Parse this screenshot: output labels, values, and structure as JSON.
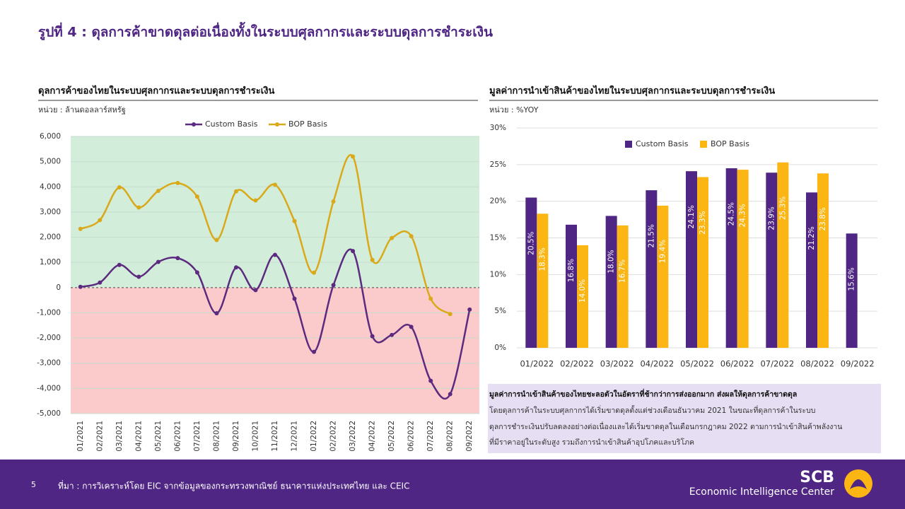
{
  "title": "รูปที่ 4 : ดุลการค้าขาดดุลต่อเนื่องทั้งในระบบศุลกากรและระบบดุลการชำระเงิน",
  "chart_data": [
    {
      "type": "line",
      "title": "ดุลการค้าของไทยในระบบศุลกากรและระบบดุลการชำระเงิน",
      "subtitle": "หน่วย : ล้านดอลลาร์สหรัฐ",
      "categories": [
        "01/2021",
        "02/2021",
        "03/2021",
        "04/2021",
        "05/2021",
        "06/2021",
        "07/2021",
        "08/2021",
        "09/2021",
        "10/2021",
        "11/2021",
        "12/2021",
        "01/2022",
        "02/2022",
        "03/2022",
        "04/2022",
        "05/2022",
        "06/2022",
        "07/2022",
        "08/2022",
        "09/2022"
      ],
      "series": [
        {
          "name": "Custom Basis",
          "color": "#5c2a7e",
          "values": [
            30,
            200,
            900,
            430,
            1020,
            1170,
            600,
            -1020,
            800,
            -100,
            1300,
            -440,
            -2550,
            100,
            1450,
            -1930,
            -1880,
            -1560,
            -3700,
            -4230,
            -870
          ]
        },
        {
          "name": "BOP Basis",
          "color": "#d9a91a",
          "values": [
            2330,
            2680,
            3980,
            3180,
            3840,
            4150,
            3610,
            1890,
            3820,
            3460,
            4080,
            2640,
            590,
            3420,
            5200,
            1100,
            1970,
            2040,
            -440,
            -1050,
            null
          ]
        }
      ],
      "ylim": [
        -5000,
        6000
      ],
      "yticks": [
        {
          "value": -5000,
          "label": "-5,000"
        },
        {
          "value": -4000,
          "label": "-4,000"
        },
        {
          "value": -3000,
          "label": "-3,000"
        },
        {
          "value": -2000,
          "label": "-2,000"
        },
        {
          "value": -1000,
          "label": "-1,000"
        },
        0,
        {
          "value": 1000,
          "label": "1,000"
        },
        {
          "value": 2000,
          "label": "2,000"
        },
        {
          "value": 3000,
          "label": "3,000"
        },
        {
          "value": 4000,
          "label": "4,000"
        },
        {
          "value": 5000,
          "label": "5,000"
        },
        {
          "value": 6000,
          "label": "6,000"
        }
      ],
      "grid": true
    },
    {
      "type": "bar",
      "title": "มูลค่าการนำเข้าสินค้าของไทยในระบบศุลกากรและระบบดุลการชำระเงิน",
      "subtitle": "หน่วย : %YOY",
      "categories": [
        "01/2022",
        "02/2022",
        "03/2022",
        "04/2022",
        "05/2022",
        "06/2022",
        "07/2022",
        "08/2022",
        "09/2022"
      ],
      "series": [
        {
          "name": "Custom Basis",
          "color": "#4f2683",
          "values": [
            20.5,
            16.8,
            18.0,
            21.5,
            24.1,
            24.5,
            23.9,
            21.2,
            15.6
          ],
          "value_labels": [
            "20.5%",
            "16.8%",
            "18.0%",
            "21.5%",
            "24.1%",
            "24.5%",
            "23.9%",
            "21.2%",
            "15.6%"
          ]
        },
        {
          "name": "BOP Basis",
          "color": "#fbb614",
          "values": [
            18.3,
            14.0,
            16.7,
            19.4,
            23.3,
            24.3,
            25.3,
            23.8,
            null
          ],
          "value_labels": [
            "18.3%",
            "14.0%",
            "16.7%",
            "19.4%",
            "23.3%",
            "24.3%",
            "25.3%",
            "23.8%",
            null
          ]
        }
      ],
      "ylim": [
        0,
        30
      ],
      "yticks": [
        {
          "value": 0,
          "label": "0%"
        },
        {
          "value": 5,
          "label": "5%"
        },
        {
          "value": 10,
          "label": "10%"
        },
        {
          "value": 15,
          "label": "15%"
        },
        {
          "value": 20,
          "label": "20%"
        },
        {
          "value": 25,
          "label": "25%"
        },
        {
          "value": 30,
          "label": "30%"
        }
      ],
      "grid": true
    }
  ],
  "note": {
    "heading": "มูลค่าการนำเข้าสินค้าของไทยชะลอตัวในอัตราที่ช้ากว่าการส่งออกมาก ส่งผลให้ดุลการค้าขาดดุล",
    "lines": [
      "โดยดุลการค้าในระบบศุลกากรได้เริ่มขาดดุลตั้งแต่ช่วงเดือนธันวาคม 2021 ในขณะที่ดุลการค้าในระบบ",
      "ดุลการชำระเงินปรับลดลงอย่างต่อเนื่องและได้เริ่มขาดดุลในเดือนกรกฎาคม 2022 ตามการนำเข้าสินค้าพลังงาน",
      "ที่มีราคาอยู่ในระดับสูง รวมถึงการนำเข้าสินค้าอุปโภคและบริโภค"
    ]
  },
  "footer": {
    "page": "5",
    "source": "ที่มา : การวิเคราะห์โดย EIC จากข้อมูลของกระทรวงพาณิชย์ ธนาคารแห่งประเทศไทย และ CEIC",
    "logo": "SCB",
    "org": "Economic Intelligence Center"
  }
}
